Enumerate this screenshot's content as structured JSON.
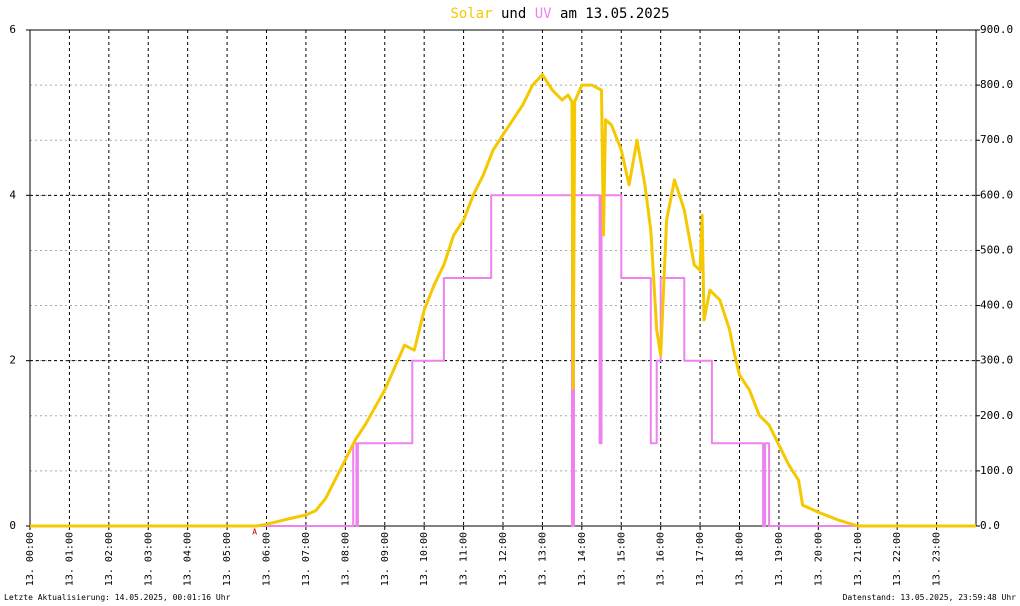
{
  "chart_data": {
    "type": "line",
    "title_text": [
      "und",
      "am 13.05.2025"
    ],
    "xlim": [
      0,
      24
    ],
    "xticks": [
      {
        "value": 0,
        "label": "13. 00:00"
      },
      {
        "value": 1,
        "label": "13. 01:00"
      },
      {
        "value": 2,
        "label": "13. 02:00"
      },
      {
        "value": 3,
        "label": "13. 03:00"
      },
      {
        "value": 4,
        "label": "13. 04:00"
      },
      {
        "value": 5,
        "label": "13. 05:00"
      },
      {
        "value": 6,
        "label": "13. 06:00"
      },
      {
        "value": 7,
        "label": "13. 07:00"
      },
      {
        "value": 8,
        "label": "13. 08:00"
      },
      {
        "value": 9,
        "label": "13. 09:00"
      },
      {
        "value": 10,
        "label": "13. 10:00"
      },
      {
        "value": 11,
        "label": "13. 11:00"
      },
      {
        "value": 12,
        "label": "13. 12:00"
      },
      {
        "value": 13,
        "label": "13. 13:00"
      },
      {
        "value": 14,
        "label": "13. 14:00"
      },
      {
        "value": 15,
        "label": "13. 15:00"
      },
      {
        "value": 16,
        "label": "13. 16:00"
      },
      {
        "value": 17,
        "label": "13. 17:00"
      },
      {
        "value": 18,
        "label": "13. 18:00"
      },
      {
        "value": 19,
        "label": "13. 19:00"
      },
      {
        "value": 20,
        "label": "13. 20:00"
      },
      {
        "value": 21,
        "label": "13. 21:00"
      },
      {
        "value": 22,
        "label": "13. 22:00"
      },
      {
        "value": 23,
        "label": "13. 23:00"
      }
    ],
    "ylim": [
      0,
      6
    ],
    "yticks": [
      0,
      2,
      4,
      6
    ],
    "y2lim": [
      0,
      900
    ],
    "y2ticks": [
      {
        "value": 0,
        "label": "0.0"
      },
      {
        "value": 100,
        "label": "100.0"
      },
      {
        "value": 200,
        "label": "200.0"
      },
      {
        "value": 300,
        "label": "300.0"
      },
      {
        "value": 400,
        "label": "400.0"
      },
      {
        "value": 500,
        "label": "500.0"
      },
      {
        "value": 600,
        "label": "600.0"
      },
      {
        "value": 700,
        "label": "700.0"
      },
      {
        "value": 800,
        "label": "800.0"
      },
      {
        "value": 900,
        "label": "900.0"
      }
    ],
    "grid": true,
    "series": [
      {
        "name": "Solar",
        "color": "#f5c800",
        "axis": "y2",
        "x": [
          0,
          5.65,
          5.75,
          6.0,
          6.5,
          7.0,
          7.25,
          7.5,
          8.0,
          8.25,
          8.5,
          9.0,
          9.5,
          9.75,
          10.0,
          10.25,
          10.5,
          10.75,
          11.0,
          11.25,
          11.5,
          11.75,
          12.0,
          12.25,
          12.5,
          12.75,
          13.0,
          13.25,
          13.5,
          13.65,
          13.75,
          13.78,
          13.82,
          14.0,
          14.25,
          14.5,
          14.55,
          14.6,
          14.75,
          15.0,
          15.2,
          15.4,
          15.6,
          15.75,
          15.9,
          16.0,
          16.15,
          16.35,
          16.6,
          16.85,
          17.0,
          17.05,
          17.1,
          17.25,
          17.5,
          17.75,
          17.85,
          18.0,
          18.25,
          18.5,
          18.75,
          19.0,
          19.25,
          19.5,
          19.6,
          20.0,
          20.5,
          21.0,
          24
        ],
        "values": [
          0,
          0,
          0,
          3,
          12,
          20,
          28,
          50,
          120,
          156,
          183,
          247,
          328,
          319,
          392,
          437,
          474,
          528,
          555,
          601,
          637,
          682,
          710,
          737,
          764,
          800,
          819,
          791,
          773,
          782,
          770,
          250,
          770,
          800,
          800,
          791,
          528,
          737,
          728,
          682,
          619,
          700,
          619,
          537,
          356,
          310,
          555,
          628,
          573,
          474,
          464,
          564,
          374,
          428,
          410,
          356,
          319,
          274,
          247,
          201,
          183,
          147,
          111,
          83,
          38,
          25,
          11,
          0,
          0
        ]
      },
      {
        "name": "UV",
        "color": "#ee82ee",
        "axis": "y",
        "x": [
          0,
          8.2,
          8.2,
          8.28,
          8.28,
          8.32,
          8.32,
          9.7,
          9.7,
          10.5,
          10.5,
          11.7,
          11.7,
          13.75,
          13.75,
          13.8,
          13.8,
          14.45,
          14.45,
          14.5,
          14.5,
          15.0,
          15.0,
          15.75,
          15.75,
          15.9,
          15.9,
          16.0,
          16.0,
          16.6,
          16.6,
          17.3,
          17.3,
          18.6,
          18.6,
          18.65,
          18.65,
          18.75,
          18.75,
          24
        ],
        "values": [
          0,
          0,
          1,
          1,
          0,
          0,
          1,
          1,
          2,
          2,
          3,
          3,
          4,
          4,
          0,
          0,
          4,
          4,
          1,
          1,
          4,
          4,
          3,
          3,
          1,
          1,
          2,
          2,
          3,
          3,
          2,
          2,
          1,
          1,
          0,
          0,
          1,
          1,
          0,
          0
        ]
      }
    ],
    "annotations": [
      {
        "x": 5.7,
        "text": "A"
      }
    ],
    "footer_left": "Letzte Aktualisierung: 14.05.2025, 00:01:16 Uhr",
    "footer_right": "Datenstand: 13.05.2025, 23:59:48 Uhr"
  }
}
